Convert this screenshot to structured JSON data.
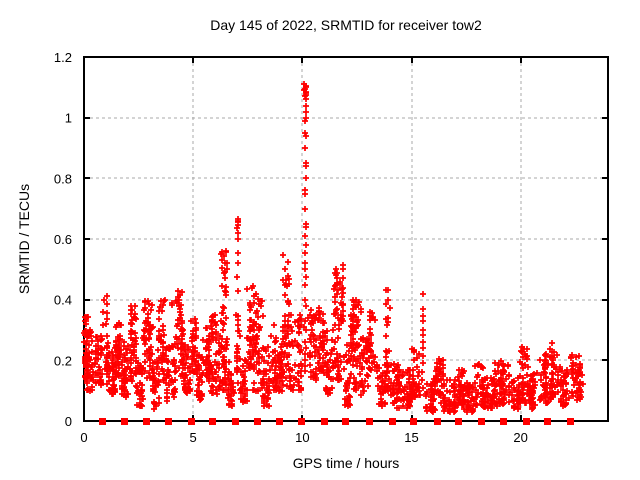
{
  "chart_data": {
    "type": "scatter",
    "title": "Day 145 of 2022, SRMTID for receiver tow2",
    "xlabel": "GPS time / hours",
    "ylabel": "SRMTID / TECUs",
    "xlim": [
      0,
      24
    ],
    "ylim": [
      0,
      1.2
    ],
    "xticks": {
      "values": [
        0,
        5,
        10,
        15,
        20
      ],
      "labels": [
        "0",
        "5",
        "10",
        "15",
        "20"
      ]
    },
    "yticks": {
      "values": [
        0,
        0.2,
        0.4,
        0.6,
        0.8,
        1.0,
        1.2
      ],
      "labels": [
        "0",
        "0.2",
        "0.4",
        "0.6",
        "0.8",
        "1",
        "1.2"
      ]
    },
    "grid": "dashed-major",
    "legend": "none",
    "colors": {
      "marker": "#ff0000",
      "grid": "#a8a8a8",
      "frame": "#000000",
      "text": "#000000",
      "background": "#ffffff"
    },
    "series": [
      {
        "name": "SRMTID",
        "marker": "plus",
        "cluster_format": [
          "x_start",
          "x_end",
          "y_min",
          "y_max",
          "count",
          "low_bias"
        ],
        "clusters": [
          [
            0.0,
            0.18,
            0.13,
            0.36,
            35,
            1.2
          ],
          [
            0.1,
            0.45,
            0.1,
            0.3,
            48,
            1.3
          ],
          [
            0.45,
            0.82,
            0.12,
            0.28,
            45,
            1.3
          ],
          [
            0.85,
            1.1,
            0.15,
            0.43,
            26,
            1.1
          ],
          [
            1.05,
            1.38,
            0.09,
            0.24,
            42,
            1.3
          ],
          [
            1.38,
            1.7,
            0.12,
            0.33,
            45,
            1.2
          ],
          [
            1.7,
            2.05,
            0.08,
            0.26,
            40,
            1.3
          ],
          [
            2.05,
            2.4,
            0.13,
            0.38,
            48,
            1.2
          ],
          [
            2.4,
            2.72,
            0.05,
            0.2,
            34,
            1.3
          ],
          [
            2.72,
            3.15,
            0.14,
            0.4,
            55,
            1.2
          ],
          [
            3.15,
            3.42,
            0.04,
            0.2,
            30,
            1.3
          ],
          [
            3.42,
            3.7,
            0.13,
            0.4,
            40,
            1.2
          ],
          [
            3.7,
            4.2,
            0.06,
            0.26,
            45,
            1.4
          ],
          [
            4.02,
            4.12,
            0.36,
            0.4,
            2,
            1.0
          ],
          [
            4.25,
            4.55,
            0.14,
            0.43,
            50,
            1.1
          ],
          [
            4.55,
            4.88,
            0.09,
            0.25,
            35,
            1.3
          ],
          [
            4.88,
            5.15,
            0.16,
            0.34,
            40,
            1.2
          ],
          [
            5.15,
            5.45,
            0.07,
            0.22,
            34,
            1.3
          ],
          [
            5.45,
            5.78,
            0.13,
            0.31,
            44,
            1.2
          ],
          [
            5.78,
            6.25,
            0.09,
            0.35,
            54,
            1.4
          ],
          [
            6.25,
            6.55,
            0.24,
            0.57,
            34,
            1.2
          ],
          [
            6.28,
            6.6,
            0.1,
            0.24,
            24,
            1.2
          ],
          [
            6.6,
            6.95,
            0.05,
            0.2,
            30,
            1.3
          ],
          [
            6.95,
            7.18,
            0.1,
            0.36,
            24,
            1.3
          ],
          [
            7.18,
            7.45,
            0.05,
            0.2,
            30,
            1.3
          ],
          [
            7.45,
            7.78,
            0.17,
            0.45,
            40,
            1.3
          ],
          [
            7.78,
            8.2,
            0.1,
            0.42,
            48,
            1.5
          ],
          [
            8.2,
            8.55,
            0.05,
            0.25,
            38,
            1.4
          ],
          [
            8.55,
            8.88,
            0.1,
            0.32,
            34,
            1.3
          ],
          [
            8.88,
            9.08,
            0.1,
            0.25,
            20,
            1.2
          ],
          [
            9.05,
            9.42,
            0.25,
            0.55,
            34,
            1.4
          ],
          [
            9.05,
            9.45,
            0.1,
            0.26,
            28,
            1.2
          ],
          [
            9.45,
            9.95,
            0.1,
            0.35,
            46,
            1.5
          ],
          [
            10.28,
            10.65,
            0.13,
            0.38,
            40,
            1.3
          ],
          [
            10.65,
            11.0,
            0.15,
            0.38,
            38,
            1.3
          ],
          [
            11.0,
            11.4,
            0.09,
            0.3,
            36,
            1.3
          ],
          [
            11.45,
            11.88,
            0.33,
            0.53,
            44,
            1.4
          ],
          [
            11.45,
            11.9,
            0.13,
            0.32,
            24,
            1.2
          ],
          [
            11.9,
            12.22,
            0.05,
            0.25,
            34,
            1.3
          ],
          [
            12.22,
            12.7,
            0.24,
            0.42,
            44,
            1.3
          ],
          [
            12.25,
            12.7,
            0.1,
            0.24,
            20,
            1.1
          ],
          [
            12.7,
            13.02,
            0.08,
            0.28,
            34,
            1.3
          ],
          [
            13.02,
            13.38,
            0.16,
            0.36,
            34,
            1.2
          ],
          [
            13.38,
            13.78,
            0.05,
            0.2,
            32,
            1.3
          ],
          [
            13.8,
            14.05,
            0.2,
            0.44,
            14,
            1.1
          ],
          [
            13.8,
            14.1,
            0.08,
            0.2,
            20,
            1.2
          ],
          [
            14.1,
            14.6,
            0.04,
            0.19,
            44,
            1.3
          ],
          [
            14.6,
            15.05,
            0.04,
            0.17,
            42,
            1.3
          ],
          [
            15.05,
            15.4,
            0.08,
            0.24,
            32,
            1.3
          ],
          [
            15.6,
            16.1,
            0.03,
            0.14,
            46,
            1.3
          ],
          [
            16.1,
            16.48,
            0.06,
            0.21,
            36,
            1.3
          ],
          [
            16.48,
            17.0,
            0.03,
            0.14,
            46,
            1.3
          ],
          [
            17.0,
            17.38,
            0.05,
            0.17,
            36,
            1.3
          ],
          [
            17.38,
            17.92,
            0.03,
            0.13,
            46,
            1.3
          ],
          [
            17.92,
            18.3,
            0.05,
            0.19,
            38,
            1.3
          ],
          [
            18.3,
            18.76,
            0.04,
            0.15,
            40,
            1.3
          ],
          [
            18.76,
            19.12,
            0.05,
            0.2,
            36,
            1.3
          ],
          [
            19.12,
            19.52,
            0.05,
            0.19,
            40,
            1.3
          ],
          [
            19.52,
            19.92,
            0.04,
            0.15,
            36,
            1.3
          ],
          [
            19.92,
            20.35,
            0.06,
            0.25,
            44,
            1.4
          ],
          [
            20.35,
            20.8,
            0.04,
            0.16,
            38,
            1.3
          ],
          [
            20.8,
            21.28,
            0.06,
            0.22,
            46,
            1.3
          ],
          [
            21.28,
            21.78,
            0.07,
            0.26,
            46,
            1.3
          ],
          [
            21.78,
            22.25,
            0.05,
            0.18,
            40,
            1.3
          ],
          [
            22.25,
            22.85,
            0.07,
            0.22,
            52,
            1.2
          ]
        ],
        "spikes": [
          {
            "x": 7.05,
            "jitter": 0.03,
            "ys": [
              0.43,
              0.475,
              0.52,
              0.555,
              0.6,
              0.62,
              0.635,
              0.645,
              0.655,
              0.66,
              0.665
            ]
          },
          {
            "x": 10.13,
            "jitter": 0.04,
            "ys": [
              1.11,
              1.105,
              1.1,
              1.095,
              1.09,
              1.085,
              1.08,
              1.075,
              1.07,
              1.06,
              1.04,
              1.02,
              1.0,
              0.99,
              0.95,
              0.94,
              0.9,
              0.85,
              0.84,
              0.8,
              0.76,
              0.75,
              0.7,
              0.65,
              0.64,
              0.61,
              0.58,
              0.555,
              0.52,
              0.5,
              0.475,
              0.45,
              0.4,
              0.38,
              0.33,
              0.31,
              0.3,
              0.26,
              0.24,
              0.22,
              0.2,
              0.18,
              0.165
            ]
          },
          {
            "x": 15.52,
            "jitter": 0.02,
            "ys": [
              0.42,
              0.37,
              0.345,
              0.33,
              0.3,
              0.285,
              0.26,
              0.24,
              0.215,
              0.19,
              0.16,
              0.135,
              0.11
            ]
          }
        ]
      },
      {
        "name": "hourly flag markers",
        "marker": "filled-square",
        "y": 0,
        "x": [
          0.82,
          1.83,
          2.84,
          3.85,
          4.9,
          5.86,
          6.92,
          7.92,
          8.93,
          9.94,
          10.99,
          11.96,
          13.05,
          14.11,
          15.07,
          16.17,
          17.13,
          18.19,
          19.19,
          20.25,
          21.21,
          22.26
        ]
      }
    ]
  }
}
